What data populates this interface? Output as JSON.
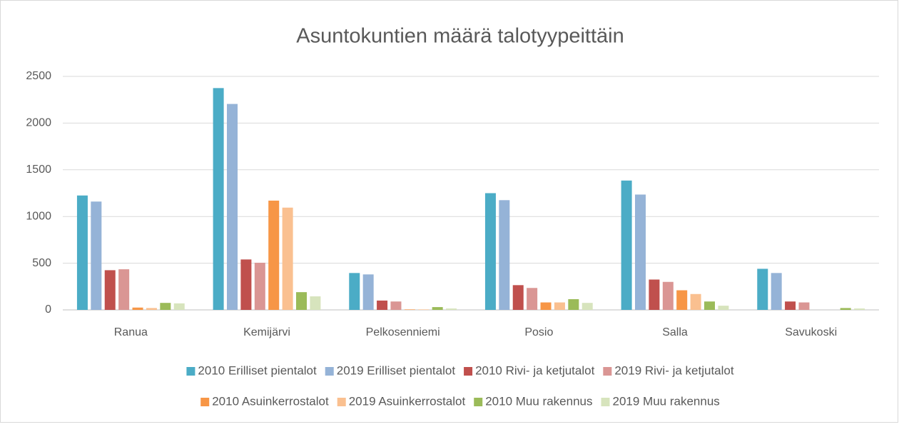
{
  "chart_data": {
    "type": "bar",
    "title": "Asuntokuntien määrä talotyypeittäin",
    "categories": [
      "Ranua",
      "Kemijärvi",
      "Pelkosenniemi",
      "Posio",
      "Salla",
      "Savukoski"
    ],
    "series": [
      {
        "name": "2010 Erilliset pientalot",
        "color": "#4bacc6",
        "values": [
          1225,
          2375,
          395,
          1250,
          1385,
          440
        ]
      },
      {
        "name": "2019 Erilliset pientalot",
        "color": "#95b3d7",
        "values": [
          1160,
          2205,
          380,
          1175,
          1235,
          395
        ]
      },
      {
        "name": "2010 Rivi- ja ketjutalot",
        "color": "#c0504d",
        "values": [
          425,
          540,
          100,
          265,
          325,
          90
        ]
      },
      {
        "name": "2019 Rivi- ja ketjutalot",
        "color": "#da9694",
        "values": [
          435,
          505,
          90,
          235,
          300,
          80
        ]
      },
      {
        "name": "2010 Asuinkerrostalot",
        "color": "#f79646",
        "values": [
          25,
          1170,
          5,
          80,
          210,
          0
        ]
      },
      {
        "name": "2019 Asuinkerrostalot",
        "color": "#fac090",
        "values": [
          20,
          1095,
          5,
          80,
          170,
          0
        ]
      },
      {
        "name": "2010 Muu rakennus",
        "color": "#9bbb59",
        "values": [
          75,
          190,
          30,
          115,
          90,
          20
        ]
      },
      {
        "name": "2019 Muu rakennus",
        "color": "#d7e4bd",
        "values": [
          70,
          145,
          15,
          75,
          45,
          15
        ]
      }
    ],
    "ylim": [
      0,
      2500
    ],
    "yticks": [
      0,
      500,
      1000,
      1500,
      2000,
      2500
    ],
    "grid": true,
    "legend": "bottom"
  }
}
